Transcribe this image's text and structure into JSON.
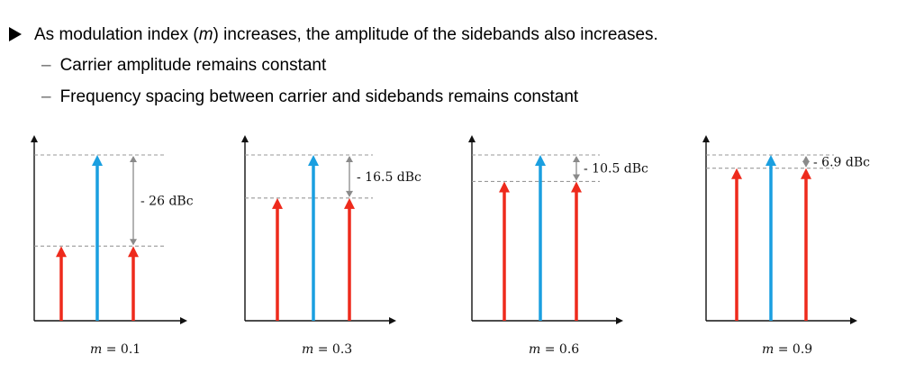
{
  "bullets": {
    "main_prefix": "As modulation index (",
    "main_var": "m",
    "main_suffix": ") increases, the amplitude of the sidebands also increases.",
    "sub_dash": "–",
    "sub_items": [
      "Carrier amplitude remains constant",
      "Frequency spacing between carrier and sidebands remains constant"
    ]
  },
  "colors": {
    "carrier": "#1a9fe0",
    "sideband": "#ee2a1c",
    "axis": "#111111",
    "dashed": "#999999",
    "measure": "#8a8a8a"
  },
  "chart_data": [
    {
      "type": "bar",
      "caption": "m = 0.1",
      "caption_var": "m",
      "caption_value": "0.1",
      "carrier_relative_amplitude": 1.0,
      "sideband_relative_amplitude": 0.45,
      "annotation": "- 26 dBc",
      "series": [
        {
          "values": [
            0.45,
            1.0,
            0.45
          ]
        }
      ]
    },
    {
      "type": "bar",
      "caption": "m = 0.3",
      "caption_var": "m",
      "caption_value": "0.3",
      "carrier_relative_amplitude": 1.0,
      "sideband_relative_amplitude": 0.74,
      "annotation": "- 16.5 dBc",
      "series": [
        {
          "values": [
            0.74,
            1.0,
            0.74
          ]
        }
      ]
    },
    {
      "type": "bar",
      "caption": "m = 0.6",
      "caption_var": "m",
      "caption_value": "0.6",
      "carrier_relative_amplitude": 1.0,
      "sideband_relative_amplitude": 0.84,
      "annotation": "- 10.5 dBc",
      "series": [
        {
          "values": [
            0.84,
            1.0,
            0.84
          ]
        }
      ]
    },
    {
      "type": "bar",
      "caption": "m = 0.9",
      "caption_var": "m",
      "caption_value": "0.9",
      "carrier_relative_amplitude": 1.0,
      "sideband_relative_amplitude": 0.92,
      "annotation": "- 6.9 dBc",
      "series": [
        {
          "values": [
            0.92,
            1.0,
            0.92
          ]
        }
      ]
    }
  ]
}
